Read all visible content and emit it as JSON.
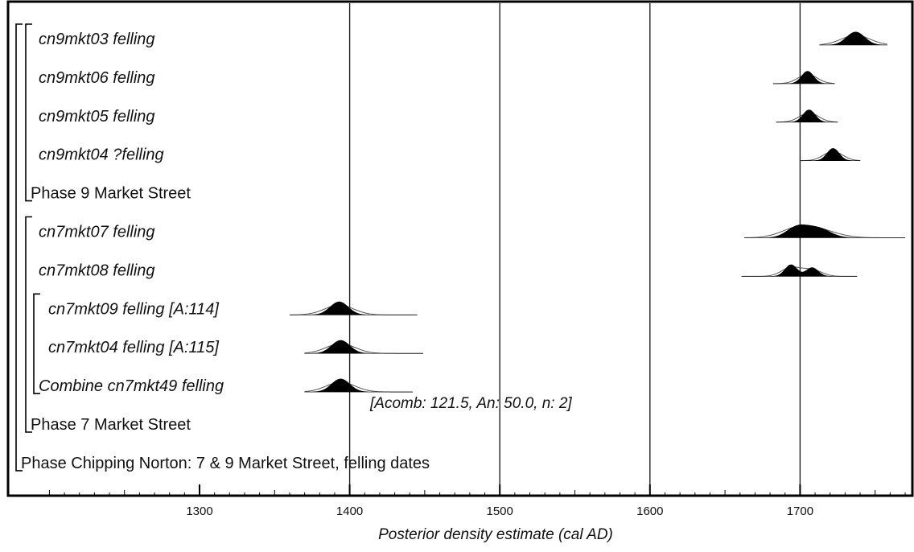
{
  "chart_data": {
    "type": "oxcal-multiplot",
    "xlabel": "Posterior density estimate (cal AD)",
    "xlim": [
      1195,
      1775
    ],
    "x_ticks": [
      1300,
      1400,
      1500,
      1600,
      1700
    ],
    "x_tick_labels": [
      "1300",
      "1400",
      "1500",
      "1600",
      "1700"
    ],
    "gridlines": [
      1400,
      1500,
      1600,
      1700
    ],
    "rows": [
      {
        "label": "cn9mkt03 felling",
        "italic": true,
        "indent": 1,
        "dist": {
          "peaks": [
            {
              "center": 1737,
              "sd": 6,
              "weight": 1
            }
          ],
          "range": [
            1713,
            1758
          ],
          "amp": 0.9
        }
      },
      {
        "label": "cn9mkt06 felling",
        "italic": true,
        "indent": 1,
        "dist": {
          "peaks": [
            {
              "center": 1705,
              "sd": 4,
              "weight": 1
            }
          ],
          "range": [
            1682,
            1723
          ],
          "amp": 0.85
        }
      },
      {
        "label": "cn9mkt05 felling",
        "italic": true,
        "indent": 1,
        "dist": {
          "peaks": [
            {
              "center": 1706,
              "sd": 4,
              "weight": 1
            }
          ],
          "range": [
            1684,
            1725
          ],
          "amp": 0.85
        }
      },
      {
        "label": "cn9mkt04 ?felling",
        "italic": true,
        "indent": 1,
        "dist": {
          "peaks": [
            {
              "center": 1722,
              "sd": 4,
              "weight": 1
            }
          ],
          "range": [
            1700,
            1740
          ],
          "amp": 0.85
        }
      },
      {
        "label": "Phase 9 Market Street",
        "italic": false,
        "indent": 0
      },
      {
        "label": "cn7mkt07 felling",
        "italic": true,
        "indent": 1,
        "dist": {
          "peaks": [
            {
              "center": 1698,
              "sd": 7,
              "weight": 1
            },
            {
              "center": 1712,
              "sd": 8,
              "weight": 0.9
            }
          ],
          "range": [
            1663,
            1770
          ],
          "amp": 0.9
        }
      },
      {
        "label": "cn7mkt08 felling",
        "italic": true,
        "indent": 1,
        "dist": {
          "peaks": [
            {
              "center": 1694,
              "sd": 4,
              "weight": 1
            },
            {
              "center": 1708,
              "sd": 4,
              "weight": 0.75
            }
          ],
          "range": [
            1661,
            1738
          ],
          "amp": 0.8
        }
      },
      {
        "label": "cn7mkt09 felling [A:114]",
        "italic": true,
        "indent": 2,
        "dist": {
          "peaks": [
            {
              "center": 1393,
              "sd": 6,
              "weight": 1
            }
          ],
          "range": [
            1360,
            1445
          ],
          "amp": 0.9
        }
      },
      {
        "label": "cn7mkt04 felling [A:115]",
        "italic": true,
        "indent": 2,
        "dist": {
          "peaks": [
            {
              "center": 1394,
              "sd": 6,
              "weight": 1
            }
          ],
          "range": [
            1370,
            1449
          ],
          "amp": 0.9
        }
      },
      {
        "label": "Combine cn7mkt49 felling",
        "italic": true,
        "indent": 1,
        "dist": {
          "peaks": [
            {
              "center": 1394,
              "sd": 6,
              "weight": 1
            }
          ],
          "range": [
            1370,
            1442
          ],
          "amp": 0.9
        }
      },
      {
        "label": "Phase 7 Market Street",
        "italic": false,
        "indent": 0
      },
      {
        "label": "Phase Chipping Norton: 7 & 9 Market Street, felling dates",
        "italic": false,
        "indent": -1
      }
    ],
    "annotation": "[Acomb: 121.5, An: 50.0, n: 2]"
  }
}
